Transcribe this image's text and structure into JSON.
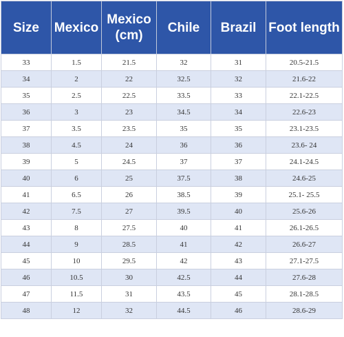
{
  "table": {
    "headers": [
      "Size",
      "Mexico",
      "Mexico\n(cm)",
      "Chile",
      "Brazil",
      "Foot length"
    ],
    "rows": [
      [
        "33",
        "1.5",
        "21.5",
        "32",
        "31",
        "20.5-21.5"
      ],
      [
        "34",
        "2",
        "22",
        "32.5",
        "32",
        "21.6-22"
      ],
      [
        "35",
        "2.5",
        "22.5",
        "33.5",
        "33",
        "22.1-22.5"
      ],
      [
        "36",
        "3",
        "23",
        "34.5",
        "34",
        "22.6-23"
      ],
      [
        "37",
        "3.5",
        "23.5",
        "35",
        "35",
        "23.1-23.5"
      ],
      [
        "38",
        "4.5",
        "24",
        "36",
        "36",
        "23.6- 24"
      ],
      [
        "39",
        "5",
        "24.5",
        "37",
        "37",
        "24.1-24.5"
      ],
      [
        "40",
        "6",
        "25",
        "37.5",
        "38",
        "24.6-25"
      ],
      [
        "41",
        "6.5",
        "26",
        "38.5",
        "39",
        "25.1- 25.5"
      ],
      [
        "42",
        "7.5",
        "27",
        "39.5",
        "40",
        "25.6-26"
      ],
      [
        "43",
        "8",
        "27.5",
        "40",
        "41",
        "26.1-26.5"
      ],
      [
        "44",
        "9",
        "28.5",
        "41",
        "42",
        "26.6-27"
      ],
      [
        "45",
        "10",
        "29.5",
        "42",
        "43",
        "27.1-27.5"
      ],
      [
        "46",
        "10.5",
        "30",
        "42.5",
        "44",
        "27.6-28"
      ],
      [
        "47",
        "11.5",
        "31",
        "43.5",
        "45",
        "28.1-28.5"
      ],
      [
        "48",
        "12",
        "32",
        "44.5",
        "46",
        "28.6-29"
      ]
    ]
  },
  "colors": {
    "header_bg": "#2e56a8",
    "header_text": "#ffffff",
    "row_alt_bg": "#dfe6f5",
    "row_bg": "#ffffff",
    "border": "#c9cfdf"
  }
}
